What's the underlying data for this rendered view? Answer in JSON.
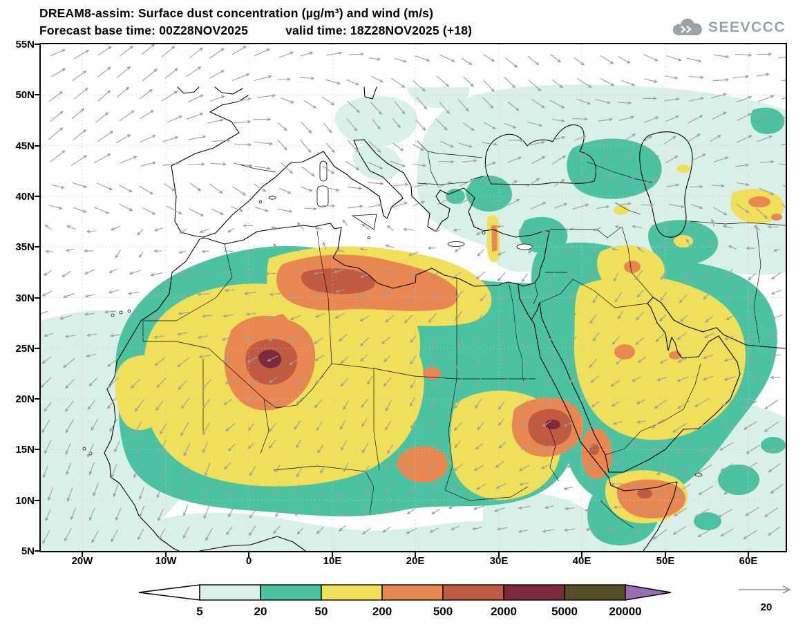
{
  "header": {
    "title_line1": "DREAM8-assim: Surface dust concentration (µg/m³) and wind (m/s)",
    "forecast_label": "Forecast base time: 00Z28NOV2025",
    "valid_label": "valid time: 18Z28NOV2025 (+18)",
    "logo_text": "SEEVCCC"
  },
  "axes": {
    "lat_labels": [
      "55N",
      "50N",
      "45N",
      "40N",
      "35N",
      "30N",
      "25N",
      "20N",
      "15N",
      "10N",
      "5N"
    ],
    "lon_labels": [
      "20W",
      "10W",
      "0",
      "10E",
      "20E",
      "30E",
      "40E",
      "50E",
      "60E"
    ]
  },
  "legend": {
    "levels": [
      "5",
      "20",
      "50",
      "200",
      "500",
      "2000",
      "5000",
      "20000"
    ],
    "colors": [
      "#ffffff",
      "#d9f0e8",
      "#4cc3a0",
      "#f0df58",
      "#e8874f",
      "#c05a41",
      "#7e2a3d",
      "#564d26",
      "#9b6bb3"
    ]
  },
  "wind": {
    "ref_label": "20"
  },
  "palette": {
    "wind_arrow": "#9a9ea1",
    "grid": "#c9c9c9",
    "coast": "#000000",
    "logo": "#9aa3a8"
  }
}
